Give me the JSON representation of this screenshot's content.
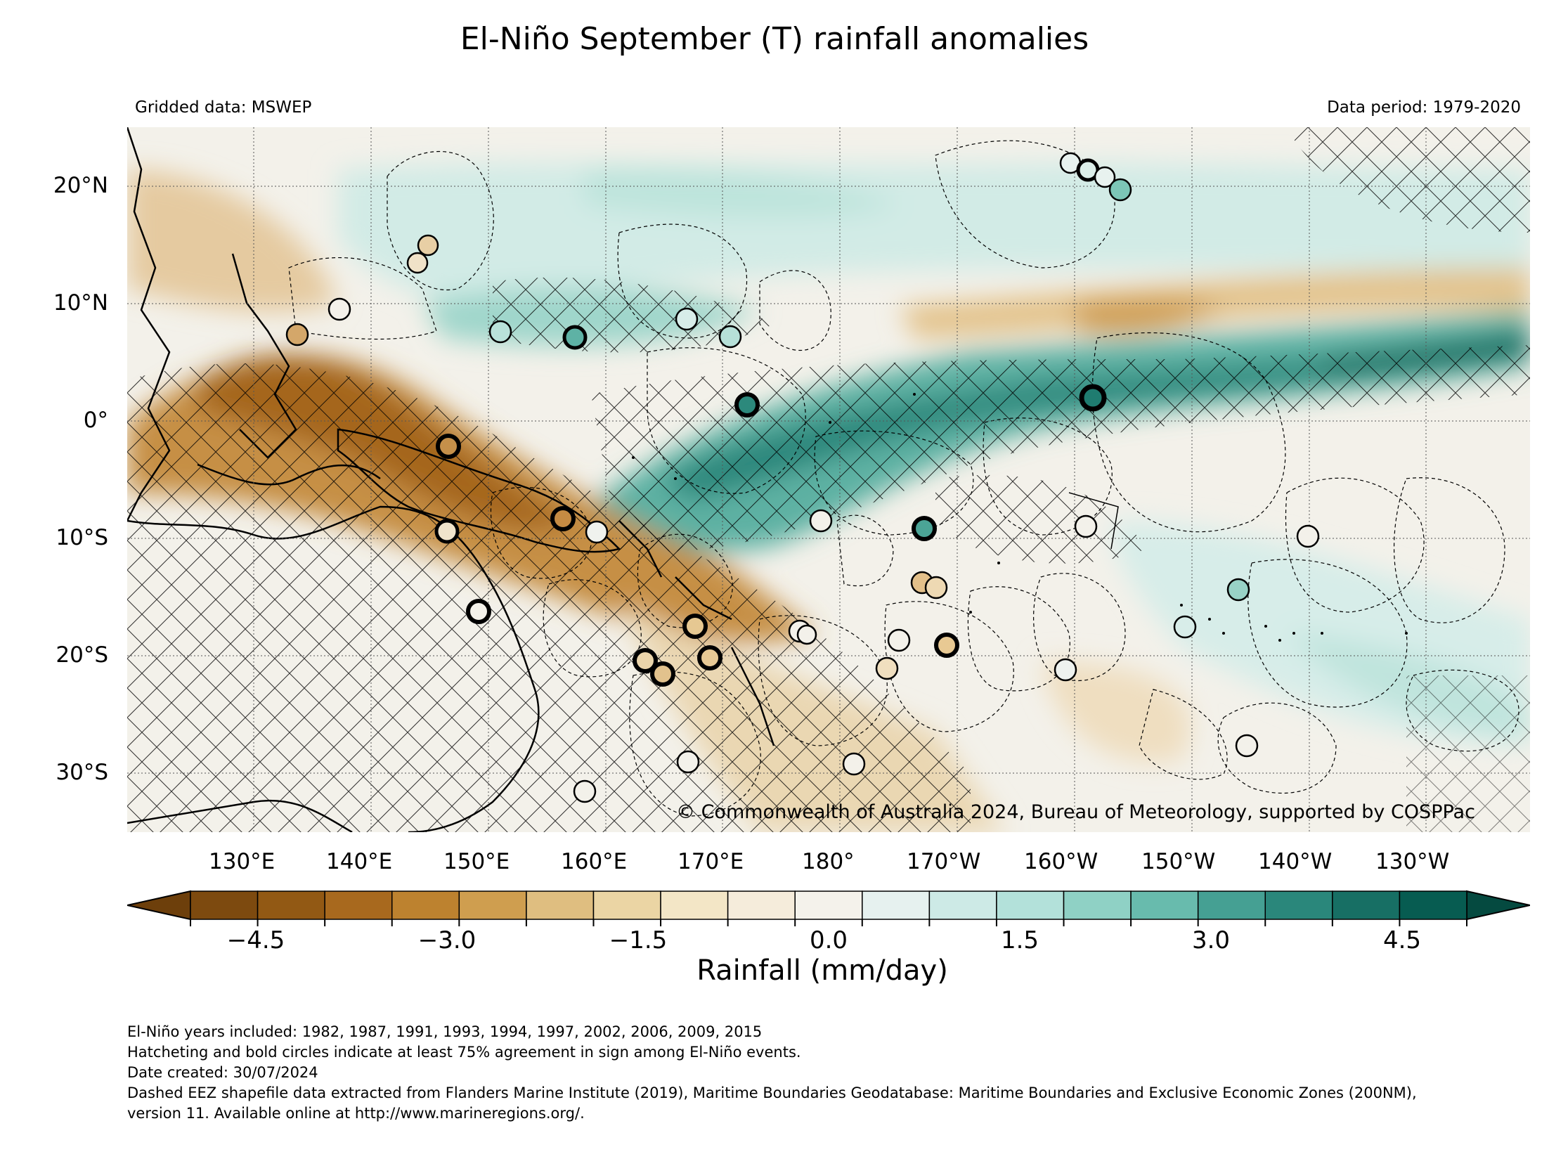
{
  "title": "El-Niño September (T) rainfall anomalies",
  "subtitle_left": "Gridded data: MSWEP",
  "subtitle_right": "Data period: 1979-2020",
  "credit": "© Commonwealth of Australia 2024, Bureau of Meteorology, supported by COSPPac",
  "lat_labels": [
    "20°N",
    "10°N",
    "0°",
    "10°S",
    "20°S",
    "30°S"
  ],
  "lon_labels": [
    "130°E",
    "140°E",
    "150°E",
    "160°E",
    "170°E",
    "180°",
    "170°W",
    "160°W",
    "150°W",
    "140°W",
    "130°W"
  ],
  "colorbar": {
    "label": "Rainfall (mm/day)",
    "tick_labels": [
      "−4.5",
      "−3.0",
      "−1.5",
      "0.0",
      "1.5",
      "3.0",
      "4.5"
    ],
    "colors": [
      "#7d4a0f",
      "#925914",
      "#a8691e",
      "#bd822f",
      "#cf9e4f",
      "#dfbe80",
      "#ebd5a4",
      "#f3e6c6",
      "#f5ecdb",
      "#f4f2eb",
      "#e6f1ef",
      "#cdeae6",
      "#b3e1da",
      "#8fd1c5",
      "#68bbad",
      "#45a093",
      "#2a877b",
      "#176f64",
      "#075c51"
    ],
    "under_color": "#6d3f0b",
    "over_color": "#054a40"
  },
  "footer": [
    "El-Niño years included: 1982, 1987, 1991, 1993, 1994, 1997, 2002, 2006, 2009, 2015",
    "Hatcheting and bold circles indicate at least 75% agreement in sign among El-Niño events.",
    "Date created: 30/07/2024",
    "Dashed EEZ shapefile data extracted from Flanders Marine Institute (2019), Maritime Boundaries Geodatabase: Maritime Boundaries and Exclusive Economic Zones (200NM),",
    "version 11. Available online at http://www.marineregions.org/."
  ]
}
